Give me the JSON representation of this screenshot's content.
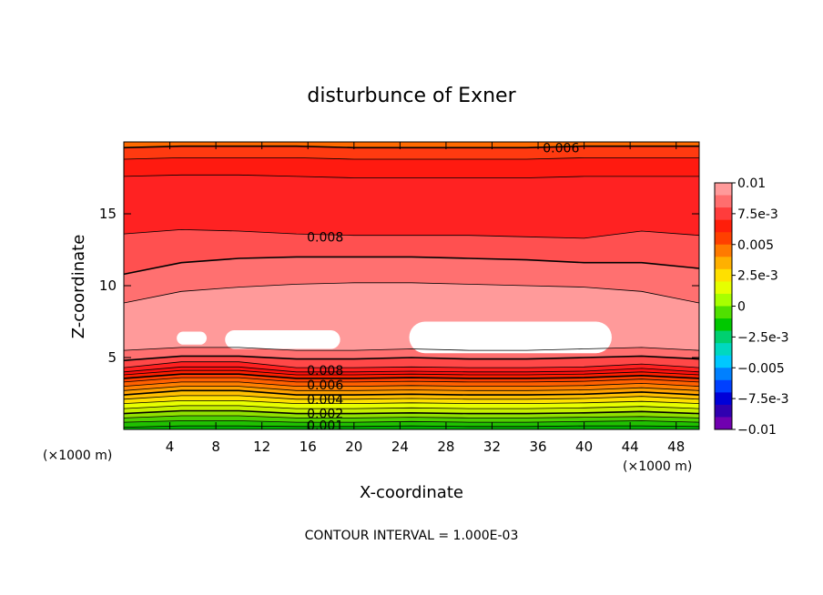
{
  "chart_data": {
    "type": "heatmap",
    "title": "disturbunce of Exner",
    "xlabel": "X-coordinate",
    "ylabel": "Z-coordinate",
    "x_unit_left": "(×1000 m)",
    "x_unit_right": "(×1000 m)",
    "footer": "CONTOUR INTERVAL = 1.000E-03",
    "xlim": [
      0,
      50
    ],
    "ylim": [
      0,
      20
    ],
    "x_ticks": [
      4,
      8,
      12,
      16,
      20,
      24,
      28,
      32,
      36,
      40,
      44,
      48
    ],
    "y_ticks": [
      5,
      10,
      15
    ],
    "contour_interval": 0.001,
    "contour_labels": [
      {
        "text": "0.006",
        "x": 38,
        "z": 19.6
      },
      {
        "text": "0.008",
        "x": 17.5,
        "z": 13.4
      },
      {
        "text": "0.008",
        "x": 17.5,
        "z": 4.1
      },
      {
        "text": "0.006",
        "x": 17.5,
        "z": 3.1
      },
      {
        "text": "0.004",
        "x": 17.5,
        "z": 2.1
      },
      {
        "text": "0.002",
        "x": 17.5,
        "z": 1.1
      },
      {
        "text": "0.001",
        "x": 17.5,
        "z": 0.3
      }
    ],
    "levels": [
      {
        "v": 0.0005,
        "z": [
          0.15,
          0.25,
          0.25,
          0.2,
          0.2,
          0.25,
          0.2,
          0.2,
          0.25,
          0.25,
          0.2
        ]
      },
      {
        "v": 0.001,
        "z": [
          0.5,
          0.6,
          0.6,
          0.5,
          0.5,
          0.55,
          0.5,
          0.5,
          0.55,
          0.6,
          0.5
        ]
      },
      {
        "v": 0.0015,
        "z": [
          0.8,
          0.95,
          0.95,
          0.8,
          0.8,
          0.85,
          0.8,
          0.8,
          0.85,
          0.9,
          0.8
        ]
      },
      {
        "v": 0.002,
        "z": [
          1.1,
          1.3,
          1.3,
          1.1,
          1.1,
          1.15,
          1.1,
          1.1,
          1.15,
          1.25,
          1.1
        ]
      },
      {
        "v": 0.0025,
        "z": [
          1.45,
          1.65,
          1.65,
          1.45,
          1.45,
          1.5,
          1.45,
          1.45,
          1.5,
          1.6,
          1.45
        ]
      },
      {
        "v": 0.003,
        "z": [
          1.8,
          2.0,
          2.0,
          1.8,
          1.8,
          1.85,
          1.8,
          1.8,
          1.85,
          1.95,
          1.8
        ]
      },
      {
        "v": 0.0035,
        "z": [
          2.1,
          2.35,
          2.35,
          2.1,
          2.1,
          2.15,
          2.1,
          2.1,
          2.15,
          2.3,
          2.1
        ]
      },
      {
        "v": 0.004,
        "z": [
          2.4,
          2.7,
          2.7,
          2.4,
          2.4,
          2.45,
          2.4,
          2.4,
          2.45,
          2.6,
          2.4
        ]
      },
      {
        "v": 0.0045,
        "z": [
          2.7,
          3.0,
          3.0,
          2.7,
          2.7,
          2.75,
          2.7,
          2.7,
          2.75,
          2.9,
          2.7
        ]
      },
      {
        "v": 0.005,
        "z": [
          3.0,
          3.3,
          3.3,
          3.0,
          3.0,
          3.05,
          3.0,
          3.0,
          3.05,
          3.2,
          3.0
        ]
      },
      {
        "v": 0.0055,
        "z": [
          3.3,
          3.6,
          3.6,
          3.3,
          3.3,
          3.35,
          3.3,
          3.3,
          3.35,
          3.5,
          3.3
        ]
      },
      {
        "v": 0.006,
        "z": [
          3.55,
          3.85,
          3.85,
          3.55,
          3.55,
          3.6,
          3.55,
          3.55,
          3.6,
          3.75,
          3.55
        ]
      },
      {
        "v": 0.0065,
        "z": [
          3.8,
          4.1,
          4.1,
          3.8,
          3.8,
          3.85,
          3.8,
          3.8,
          3.85,
          4.0,
          3.8
        ]
      },
      {
        "v": 0.007,
        "z": [
          4.0,
          4.35,
          4.35,
          4.0,
          4.0,
          4.05,
          4.0,
          4.0,
          4.05,
          4.25,
          4.0
        ]
      },
      {
        "v": 0.0075,
        "z": [
          4.3,
          4.7,
          4.7,
          4.3,
          4.3,
          4.35,
          4.3,
          4.3,
          4.35,
          4.55,
          4.3
        ]
      },
      {
        "v": 0.008,
        "z": [
          4.8,
          5.1,
          5.1,
          4.9,
          4.9,
          5.0,
          4.9,
          4.9,
          5.0,
          5.1,
          4.9
        ]
      },
      {
        "v": 0.0085,
        "z": [
          5.5,
          5.7,
          5.7,
          5.5,
          5.5,
          5.6,
          5.5,
          5.5,
          5.6,
          5.7,
          5.5
        ]
      }
    ],
    "upper_levels": [
      {
        "v": 0.0085,
        "z": [
          8.8,
          9.6,
          9.9,
          10.1,
          10.2,
          10.2,
          10.1,
          10.0,
          9.9,
          9.6,
          8.8
        ]
      },
      {
        "v": 0.008,
        "z": [
          10.8,
          11.6,
          11.9,
          12.0,
          12.0,
          12.0,
          11.9,
          11.8,
          11.6,
          11.6,
          11.2
        ]
      },
      {
        "v": 0.0075,
        "z": [
          13.6,
          13.9,
          13.8,
          13.6,
          13.5,
          13.5,
          13.5,
          13.4,
          13.3,
          13.8,
          13.5
        ]
      },
      {
        "v": 0.007,
        "z": [
          17.6,
          17.7,
          17.7,
          17.6,
          17.5,
          17.5,
          17.5,
          17.5,
          17.6,
          17.6,
          17.6
        ]
      },
      {
        "v": 0.0065,
        "z": [
          18.8,
          18.9,
          18.9,
          18.9,
          18.8,
          18.8,
          18.8,
          18.8,
          18.9,
          18.9,
          18.9
        ]
      },
      {
        "v": 0.006,
        "z": [
          19.6,
          19.7,
          19.7,
          19.7,
          19.6,
          19.6,
          19.6,
          19.6,
          19.7,
          19.7,
          19.7
        ]
      }
    ],
    "white_patches": [
      {
        "x0": 4.6,
        "x1": 7.2,
        "z0": 5.9,
        "z1": 6.8
      },
      {
        "x0": 8.8,
        "x1": 18.8,
        "z0": 5.6,
        "z1": 6.9
      },
      {
        "x0": 24.8,
        "x1": 42.4,
        "z0": 5.3,
        "z1": 7.5
      }
    ],
    "colorbar": {
      "labels": [
        "0.01",
        "7.5e-3",
        "0.005",
        "2.5e-3",
        "0",
        "-2.5e-3",
        "-0.005",
        "-7.5e-3",
        "-0.01"
      ],
      "colors": [
        "#ff9a9a",
        "#ff6e6e",
        "#ff3c3c",
        "#ff1e0a",
        "#ff4000",
        "#ff7a00",
        "#ffb000",
        "#ffe000",
        "#e6ff00",
        "#a8ff00",
        "#50e000",
        "#00c800",
        "#00d070",
        "#00d8c0",
        "#00c8ff",
        "#0080ff",
        "#0040ff",
        "#0000d8",
        "#3000b0",
        "#7000b0"
      ]
    },
    "fill_colors": [
      {
        "v": 0.0,
        "c": "#00b000"
      },
      {
        "v": 0.0005,
        "c": "#20c000"
      },
      {
        "v": 0.001,
        "c": "#50d000"
      },
      {
        "v": 0.0015,
        "c": "#90e000"
      },
      {
        "v": 0.002,
        "c": "#c8f000"
      },
      {
        "v": 0.0025,
        "c": "#e8ff00"
      },
      {
        "v": 0.003,
        "c": "#ffe000"
      },
      {
        "v": 0.0035,
        "c": "#ffc000"
      },
      {
        "v": 0.004,
        "c": "#ffa000"
      },
      {
        "v": 0.0045,
        "c": "#ff8000"
      },
      {
        "v": 0.005,
        "c": "#ff6000"
      },
      {
        "v": 0.0055,
        "c": "#ff4000"
      },
      {
        "v": 0.006,
        "c": "#ff2000"
      },
      {
        "v": 0.0065,
        "c": "#ff1010"
      },
      {
        "v": 0.007,
        "c": "#ff2020"
      },
      {
        "v": 0.0075,
        "c": "#ff4848"
      },
      {
        "v": 0.008,
        "c": "#ff7070"
      },
      {
        "v": 0.0085,
        "c": "#ff9a9a"
      }
    ],
    "upper_fill_colors": [
      {
        "v": 0.0085,
        "c": "#ff7070"
      },
      {
        "v": 0.008,
        "c": "#ff5050"
      },
      {
        "v": 0.0075,
        "c": "#ff2222"
      },
      {
        "v": 0.007,
        "c": "#ff1a10"
      },
      {
        "v": 0.0065,
        "c": "#ff3a10"
      },
      {
        "v": 0.006,
        "c": "#ff6a00"
      }
    ]
  }
}
